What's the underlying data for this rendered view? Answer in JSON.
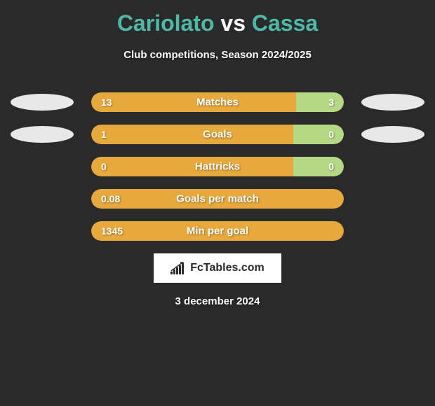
{
  "title": {
    "player1": "Cariolato",
    "vs": "vs",
    "player2": "Cassa",
    "player1_color": "#4fb8a8",
    "player2_color": "#4fb8a8",
    "vs_color": "#ffffff",
    "fontsize": 32
  },
  "subtitle": "Club competitions, Season 2024/2025",
  "background_color": "#2a2a2a",
  "bar_colors": {
    "left": "#e8a93c",
    "right": "#b5d885"
  },
  "avatar_color": "#e8e8e8",
  "stats": [
    {
      "label": "Matches",
      "left_value": "13",
      "right_value": "3",
      "left_pct": 81,
      "right_pct": 19,
      "show_avatars": true,
      "show_right": true
    },
    {
      "label": "Goals",
      "left_value": "1",
      "right_value": "0",
      "left_pct": 80,
      "right_pct": 20,
      "show_avatars": true,
      "show_right": true
    },
    {
      "label": "Hattricks",
      "left_value": "0",
      "right_value": "0",
      "left_pct": 80,
      "right_pct": 20,
      "show_avatars": false,
      "show_right": true
    },
    {
      "label": "Goals per match",
      "left_value": "0.08",
      "right_value": "",
      "left_pct": 100,
      "right_pct": 0,
      "show_avatars": false,
      "show_right": false
    },
    {
      "label": "Min per goal",
      "left_value": "1345",
      "right_value": "",
      "left_pct": 100,
      "right_pct": 0,
      "show_avatars": false,
      "show_right": false
    }
  ],
  "logo": {
    "text": "FcTables.com",
    "background_color": "#ffffff",
    "text_color": "#2a2a2a"
  },
  "date": "3 december 2024"
}
